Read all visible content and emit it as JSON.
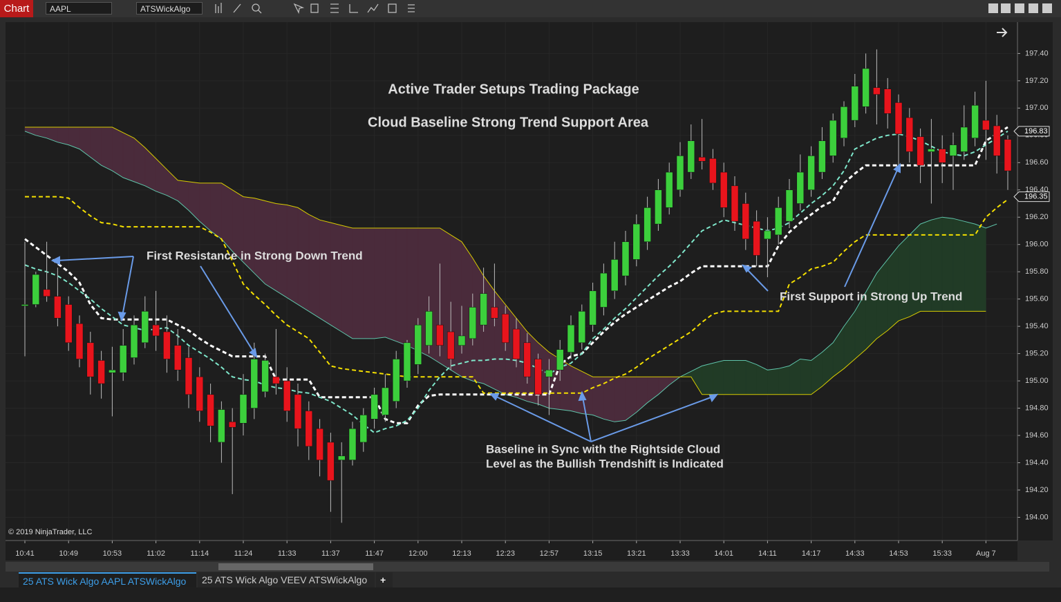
{
  "toolbar": {
    "button": "Chart",
    "instrument": "AAPL",
    "indicator": "ATSWickAlgo"
  },
  "copyright": "© 2019 NinjaTrader, LLC",
  "tabs": [
    "25 ATS Wick Algo AAPL ATSWickAlgo",
    "25 ATS Wick Algo VEEV ATSWickAlgo",
    "+"
  ],
  "chart_data": {
    "type": "candlestick",
    "title": "Active Trader Setups Trading Package",
    "subtitle": "Cloud Baseline Strong Trend Support Area",
    "annotations": [
      "First Resistance in Strong Down Trend",
      "First Support in Strong Up Trend",
      "Baseline in Sync with the Rightside Cloud",
      "Level as the Bullish Trendshift is Indicated"
    ],
    "categories": [
      "10:41",
      null,
      null,
      null,
      "10:49",
      null,
      null,
      null,
      "10:53",
      null,
      null,
      null,
      "11:02",
      null,
      null,
      null,
      "11:14",
      null,
      null,
      null,
      "11:24",
      null,
      null,
      null,
      "11:33",
      null,
      null,
      null,
      "11:37",
      null,
      null,
      null,
      "11:47",
      null,
      null,
      null,
      "12:00",
      null,
      null,
      null,
      "12:13",
      null,
      null,
      null,
      "12:23",
      null,
      null,
      null,
      "12:57",
      null,
      null,
      null,
      "13:15",
      null,
      null,
      null,
      "13:21",
      null,
      null,
      null,
      "13:33",
      null,
      null,
      null,
      "14:01",
      null,
      null,
      null,
      "14:11",
      null,
      null,
      null,
      "14:17",
      null,
      null,
      null,
      "14:33",
      null,
      null,
      null,
      "14:53",
      null,
      null,
      null,
      "15:33",
      null,
      null,
      null,
      "Aug 7",
      null,
      null
    ],
    "open": [
      195.55,
      195.56,
      195.67,
      195.62,
      195.56,
      195.42,
      195.28,
      195.15,
      195.06,
      195.06,
      195.17,
      195.28,
      195.41,
      195.36,
      195.26,
      195.17,
      195.03,
      194.9,
      194.55,
      194.7,
      194.69,
      194.8,
      194.92,
      195.03,
      195.0,
      194.9,
      194.78,
      194.65,
      194.55,
      194.42,
      194.42,
      194.55,
      194.72,
      194.75,
      194.85,
      195.0,
      195.12,
      195.26,
      195.41,
      195.36,
      195.26,
      195.31,
      195.41,
      195.54,
      195.49,
      195.38,
      195.28,
      195.16,
      195.03,
      195.08,
      195.21,
      195.28,
      195.41,
      195.54,
      195.66,
      195.77,
      195.89,
      196.02,
      196.15,
      196.27,
      196.4,
      196.53,
      196.64,
      196.63,
      196.53,
      196.43,
      196.3,
      196.17,
      196.04,
      196.07,
      196.17,
      196.3,
      196.4,
      196.53,
      196.65,
      196.78,
      196.91,
      197.01,
      197.15,
      197.14,
      197.04,
      196.93,
      196.79,
      196.68,
      196.7,
      196.65,
      196.68,
      196.78,
      196.91,
      196.87,
      196.77
    ],
    "high": [
      196.02,
      195.8,
      196.02,
      195.83,
      195.62,
      195.48,
      195.36,
      195.22,
      195.25,
      195.38,
      195.48,
      195.62,
      195.66,
      195.48,
      195.38,
      195.25,
      195.1,
      194.98,
      194.85,
      194.8,
      195.05,
      195.28,
      195.2,
      195.38,
      195.1,
      194.98,
      194.85,
      194.72,
      194.62,
      194.55,
      194.7,
      194.8,
      194.95,
      195.05,
      195.22,
      195.3,
      195.46,
      195.62,
      195.86,
      195.58,
      195.55,
      195.64,
      195.83,
      195.86,
      195.55,
      195.46,
      195.35,
      195.2,
      195.16,
      195.3,
      195.48,
      195.56,
      195.72,
      195.86,
      196.02,
      196.1,
      196.22,
      196.35,
      196.48,
      196.6,
      196.75,
      196.88,
      196.92,
      196.7,
      196.6,
      196.5,
      196.38,
      196.25,
      196.2,
      196.35,
      196.48,
      196.66,
      196.72,
      196.86,
      196.96,
      197.05,
      197.25,
      197.4,
      197.43,
      197.22,
      197.1,
      197.0,
      196.85,
      196.92,
      196.8,
      196.82,
      197.02,
      197.12,
      197.2,
      196.95,
      196.8
    ],
    "low": [
      195.18,
      195.54,
      195.58,
      195.4,
      195.22,
      195.1,
      194.9,
      194.87,
      194.74,
      195.0,
      195.12,
      195.24,
      195.22,
      195.06,
      195.0,
      194.8,
      194.7,
      194.55,
      194.4,
      194.17,
      194.6,
      194.72,
      194.88,
      194.9,
      194.7,
      194.52,
      194.42,
      194.3,
      194.04,
      193.96,
      194.38,
      194.48,
      194.65,
      194.7,
      194.8,
      194.95,
      195.05,
      195.2,
      195.18,
      195.08,
      195.2,
      195.26,
      195.36,
      195.4,
      195.22,
      195.1,
      194.98,
      194.82,
      194.75,
      195.0,
      195.16,
      195.23,
      195.36,
      195.48,
      195.6,
      195.7,
      195.84,
      195.96,
      196.1,
      196.22,
      196.35,
      196.48,
      196.55,
      196.4,
      196.2,
      196.1,
      195.96,
      195.84,
      195.76,
      196.0,
      196.12,
      196.25,
      196.35,
      196.48,
      196.6,
      196.72,
      196.86,
      196.96,
      196.88,
      196.85,
      196.55,
      196.6,
      196.45,
      196.3,
      196.45,
      196.4,
      196.62,
      196.72,
      196.62,
      196.52,
      196.4
    ],
    "close": [
      195.56,
      195.78,
      195.62,
      195.46,
      195.28,
      195.16,
      195.03,
      194.98,
      195.08,
      195.26,
      195.41,
      195.51,
      195.33,
      195.16,
      195.08,
      194.9,
      194.78,
      194.67,
      194.79,
      194.66,
      194.9,
      195.16,
      195.15,
      194.98,
      194.78,
      194.65,
      194.52,
      194.42,
      194.27,
      194.45,
      194.65,
      194.75,
      194.9,
      194.95,
      195.16,
      195.28,
      195.41,
      195.51,
      195.26,
      195.16,
      195.33,
      195.54,
      195.64,
      195.46,
      195.28,
      195.16,
      195.03,
      194.9,
      195.08,
      195.23,
      195.41,
      195.51,
      195.66,
      195.79,
      195.89,
      196.02,
      196.15,
      196.27,
      196.4,
      196.53,
      196.65,
      196.76,
      196.61,
      196.45,
      196.27,
      196.17,
      196.04,
      195.92,
      196.1,
      196.27,
      196.4,
      196.53,
      196.65,
      196.76,
      196.91,
      197.01,
      197.16,
      197.29,
      197.1,
      196.96,
      196.81,
      196.68,
      196.58,
      196.7,
      196.6,
      196.73,
      196.86,
      197.02,
      196.84,
      196.65,
      196.54
    ],
    "up_color": "#3ccf3c",
    "down_color": "#e8141c",
    "cloud": {
      "a": [
        196.83,
        196.8,
        196.78,
        196.75,
        196.73,
        196.7,
        196.64,
        196.58,
        196.54,
        196.49,
        196.46,
        196.43,
        196.39,
        196.36,
        196.32,
        196.25,
        196.17,
        196.1,
        196.04,
        195.95,
        195.87,
        195.79,
        195.71,
        195.66,
        195.61,
        195.56,
        195.51,
        195.46,
        195.41,
        195.36,
        195.31,
        195.31,
        195.31,
        195.32,
        195.29,
        195.26,
        195.22,
        195.18,
        195.13,
        195.08,
        195.03,
        195.0,
        194.98,
        194.94,
        194.9,
        194.88,
        194.85,
        194.83,
        194.8,
        194.79,
        194.78,
        194.76,
        194.75,
        194.72,
        194.7,
        194.71,
        194.77,
        194.84,
        194.9,
        194.97,
        195.03,
        195.07,
        195.11,
        195.13,
        195.15,
        195.15,
        195.15,
        195.12,
        195.08,
        195.09,
        195.11,
        195.16,
        195.15,
        195.21,
        195.28,
        195.4,
        195.51,
        195.65,
        195.79,
        195.89,
        195.99,
        196.07,
        196.15,
        196.18,
        196.2,
        196.19,
        196.17,
        196.15,
        196.12,
        196.15,
        null
      ],
      "b": [
        196.86,
        196.86,
        196.86,
        196.86,
        196.86,
        196.86,
        196.86,
        196.86,
        196.86,
        196.82,
        196.78,
        196.71,
        196.63,
        196.55,
        196.47,
        196.46,
        196.45,
        196.45,
        196.45,
        196.4,
        196.35,
        196.34,
        196.32,
        196.3,
        196.29,
        196.27,
        196.22,
        196.18,
        196.16,
        196.14,
        196.12,
        196.12,
        196.12,
        196.12,
        196.12,
        196.12,
        196.12,
        196.12,
        196.12,
        196.07,
        196.02,
        195.9,
        195.77,
        195.66,
        195.56,
        195.46,
        195.36,
        195.28,
        195.21,
        195.16,
        195.11,
        195.07,
        195.03,
        195.03,
        195.03,
        195.03,
        195.03,
        195.03,
        195.03,
        195.03,
        195.03,
        195.03,
        194.9,
        194.9,
        194.9,
        194.9,
        194.9,
        194.9,
        194.9,
        194.9,
        194.9,
        194.9,
        194.9,
        194.96,
        195.03,
        195.09,
        195.16,
        195.23,
        195.31,
        195.37,
        195.44,
        195.47,
        195.51,
        195.51,
        195.51,
        195.51,
        195.51,
        195.51,
        195.51,
        null,
        null
      ],
      "a_color": "#5fc4aa",
      "b_color": "#d8cc00",
      "bull_fill": "#213b26",
      "bear_fill": "#4a2b3b"
    },
    "overlays": [
      {
        "color": "#ffffff",
        "dashed": true,
        "width": 3,
        "values": [
          196.04,
          195.98,
          195.92,
          195.86,
          195.8,
          195.72,
          195.56,
          195.46,
          195.45,
          195.45,
          195.45,
          195.45,
          195.45,
          195.45,
          195.41,
          195.37,
          195.31,
          195.26,
          195.22,
          195.18,
          195.18,
          195.18,
          195.18,
          195.01,
          195.01,
          195.01,
          195.01,
          194.88,
          194.88,
          194.88,
          194.88,
          194.88,
          194.88,
          194.72,
          194.69,
          194.69,
          194.82,
          194.89,
          194.9,
          194.9,
          194.9,
          194.9,
          194.9,
          194.9,
          194.9,
          194.9,
          194.9,
          194.9,
          194.9,
          195.12,
          195.18,
          195.2,
          195.28,
          195.36,
          195.43,
          195.49,
          195.54,
          195.59,
          195.64,
          195.69,
          195.73,
          195.79,
          195.84,
          195.84,
          195.84,
          195.84,
          195.84,
          195.84,
          195.84,
          195.99,
          196.09,
          196.16,
          196.22,
          196.28,
          196.32,
          196.45,
          196.52,
          196.58,
          196.58,
          196.58,
          196.58,
          196.58,
          196.58,
          196.58,
          196.58,
          196.58,
          196.58,
          196.58,
          196.76,
          196.81,
          196.86
        ]
      },
      {
        "color": "#7fe8cc",
        "dashed": true,
        "width": 2,
        "values": [
          195.85,
          195.82,
          195.8,
          195.77,
          195.72,
          195.66,
          195.6,
          195.53,
          195.47,
          195.41,
          195.39,
          195.37,
          195.38,
          195.39,
          195.33,
          195.26,
          195.21,
          195.16,
          195.1,
          195.03,
          195.01,
          195.0,
          194.97,
          194.95,
          194.94,
          194.92,
          194.91,
          194.88,
          194.85,
          194.8,
          194.75,
          194.68,
          194.62,
          194.65,
          194.67,
          194.71,
          194.8,
          194.93,
          195.03,
          195.11,
          195.13,
          195.15,
          195.15,
          195.16,
          195.16,
          195.15,
          195.13,
          195.09,
          195.05,
          195.1,
          195.13,
          195.2,
          195.31,
          195.38,
          195.46,
          195.53,
          195.61,
          195.69,
          195.77,
          195.84,
          195.92,
          196.01,
          196.1,
          196.14,
          196.18,
          196.16,
          196.14,
          196.12,
          196.1,
          196.12,
          196.16,
          196.23,
          196.3,
          196.36,
          196.43,
          196.54,
          196.7,
          196.74,
          196.78,
          196.8,
          196.81,
          196.79,
          196.76,
          196.72,
          196.68,
          196.66,
          196.65,
          196.68,
          196.73,
          196.78,
          196.83
        ]
      },
      {
        "color": "#f5e000",
        "dashed": true,
        "width": 2,
        "values": [
          196.35,
          196.35,
          196.35,
          196.35,
          196.34,
          196.27,
          196.21,
          196.16,
          196.15,
          196.13,
          196.13,
          196.13,
          196.13,
          196.13,
          196.13,
          196.13,
          196.13,
          196.09,
          196.04,
          195.88,
          195.71,
          195.63,
          195.56,
          195.48,
          195.41,
          195.36,
          195.31,
          195.21,
          195.11,
          195.09,
          195.08,
          195.07,
          195.06,
          195.05,
          195.04,
          195.03,
          195.03,
          195.03,
          195.03,
          195.03,
          195.03,
          195.03,
          194.91,
          194.91,
          194.91,
          194.91,
          194.91,
          194.91,
          194.91,
          194.91,
          194.91,
          194.91,
          194.95,
          194.98,
          195.02,
          195.05,
          195.1,
          195.16,
          195.21,
          195.26,
          195.31,
          195.36,
          195.43,
          195.49,
          195.51,
          195.51,
          195.51,
          195.51,
          195.51,
          195.51,
          195.71,
          195.76,
          195.82,
          195.84,
          195.87,
          195.95,
          196.02,
          196.07,
          196.07,
          196.07,
          196.07,
          196.07,
          196.07,
          196.07,
          196.07,
          196.07,
          196.07,
          196.07,
          196.2,
          196.27,
          196.33
        ]
      }
    ],
    "price_markers": [
      196.83,
      196.35
    ],
    "ylim": [
      193.83,
      197.63
    ],
    "yticks": [
      {
        "value": 194.0,
        "label": "194.00"
      },
      {
        "value": 194.2,
        "label": "194.20"
      },
      {
        "value": 194.4,
        "label": "194.40"
      },
      {
        "value": 194.6,
        "label": "194.60"
      },
      {
        "value": 194.8,
        "label": "194.80"
      },
      {
        "value": 195.0,
        "label": "195.00"
      },
      {
        "value": 195.2,
        "label": "195.20"
      },
      {
        "value": 195.4,
        "label": "195.40"
      },
      {
        "value": 195.6,
        "label": "195.60"
      },
      {
        "value": 195.8,
        "label": "195.80"
      },
      {
        "value": 196.0,
        "label": "196.00"
      },
      {
        "value": 196.2,
        "label": "196.20"
      },
      {
        "value": 196.4,
        "label": "196.40"
      },
      {
        "value": 196.6,
        "label": "196.60"
      },
      {
        "value": 196.8,
        "label": "196.80"
      },
      {
        "value": 197.0,
        "label": "197.00"
      },
      {
        "value": 197.2,
        "label": "197.20"
      },
      {
        "value": 197.4,
        "label": "197.40"
      }
    ],
    "grid": true
  }
}
